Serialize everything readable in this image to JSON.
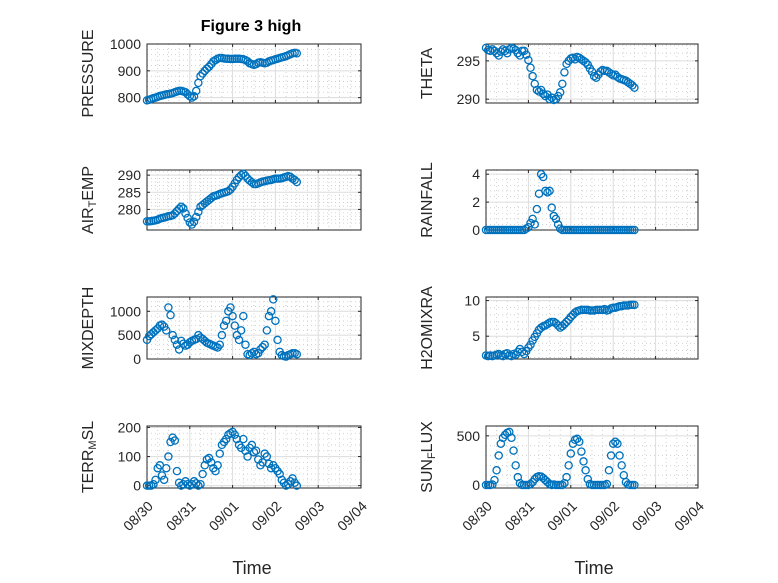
{
  "figure": {
    "title": "Figure 3 high",
    "xlabel": "Time"
  },
  "colors": {
    "marker": "#0072BD",
    "axis": "#262626"
  },
  "chart_data": [
    {
      "id": "pressure",
      "type": "scatter",
      "title": "Figure 3 high",
      "xlabel": "",
      "ylabel": "PRESSURE",
      "ylim": [
        780,
        1000
      ],
      "yticks": [
        800,
        900,
        1000
      ],
      "xlim": [
        0,
        5
      ],
      "x": [
        0.0,
        0.05,
        0.1,
        0.15,
        0.2,
        0.25,
        0.3,
        0.35,
        0.4,
        0.45,
        0.5,
        0.55,
        0.6,
        0.65,
        0.7,
        0.75,
        0.8,
        0.85,
        0.9,
        0.95,
        1.0,
        1.05,
        1.1,
        1.15,
        1.2,
        1.25,
        1.3,
        1.35,
        1.4,
        1.45,
        1.5,
        1.55,
        1.6,
        1.65,
        1.7,
        1.75,
        1.8,
        1.85,
        1.9,
        1.95,
        2.0,
        2.05,
        2.1,
        2.15,
        2.2,
        2.25,
        2.3,
        2.35,
        2.4,
        2.45,
        2.5,
        2.55,
        2.6,
        2.65,
        2.7,
        2.75,
        2.8,
        2.85,
        2.9,
        2.95,
        3.0,
        3.05,
        3.1,
        3.15,
        3.2,
        3.25,
        3.3,
        3.35,
        3.4,
        3.45,
        3.5
      ],
      "y": [
        790,
        792,
        795,
        798,
        800,
        803,
        806,
        808,
        810,
        812,
        813,
        815,
        817,
        820,
        823,
        825,
        825,
        823,
        820,
        812,
        805,
        800,
        805,
        825,
        855,
        880,
        890,
        900,
        908,
        915,
        925,
        935,
        940,
        945,
        948,
        948,
        946,
        945,
        945,
        944,
        944,
        945,
        945,
        945,
        944,
        943,
        940,
        935,
        928,
        925,
        922,
        925,
        930,
        932,
        930,
        928,
        930,
        935,
        938,
        940,
        943,
        945,
        948,
        950,
        952,
        955,
        958,
        962,
        965,
        967,
        965
      ]
    },
    {
      "id": "theta",
      "type": "scatter",
      "xlabel": "",
      "ylabel": "THETA",
      "ylim": [
        289.5,
        297.2
      ],
      "yticks": [
        290,
        295
      ],
      "xlim": [
        0,
        5
      ],
      "x": [
        0.0,
        0.05,
        0.1,
        0.15,
        0.2,
        0.25,
        0.3,
        0.35,
        0.4,
        0.45,
        0.5,
        0.55,
        0.6,
        0.65,
        0.7,
        0.75,
        0.8,
        0.85,
        0.9,
        0.95,
        1.0,
        1.05,
        1.1,
        1.15,
        1.2,
        1.25,
        1.3,
        1.35,
        1.4,
        1.45,
        1.5,
        1.55,
        1.6,
        1.65,
        1.7,
        1.75,
        1.8,
        1.85,
        1.9,
        1.95,
        2.0,
        2.05,
        2.1,
        2.15,
        2.2,
        2.25,
        2.3,
        2.35,
        2.4,
        2.45,
        2.5,
        2.55,
        2.6,
        2.65,
        2.7,
        2.75,
        2.8,
        2.85,
        2.9,
        2.95,
        3.0,
        3.05,
        3.1,
        3.15,
        3.2,
        3.25,
        3.3,
        3.35,
        3.4,
        3.45,
        3.5
      ],
      "y": [
        296.7,
        296.4,
        296.3,
        296.5,
        296.3,
        296.0,
        295.7,
        296.2,
        296.5,
        296.3,
        296.0,
        296.5,
        296.7,
        296.6,
        296.4,
        296.0,
        295.7,
        296.3,
        296.3,
        295.8,
        295.1,
        294.1,
        293.0,
        292.0,
        291.2,
        291.0,
        291.2,
        290.7,
        290.4,
        290.6,
        290.0,
        290.2,
        289.9,
        290.0,
        290.4,
        290.9,
        292.0,
        293.5,
        294.6,
        295.0,
        295.3,
        295.4,
        295.2,
        295.5,
        295.4,
        295.2,
        295.0,
        294.8,
        294.5,
        294.0,
        293.6,
        293.0,
        292.8,
        293.2,
        293.6,
        293.8,
        293.7,
        293.7,
        293.5,
        293.3,
        293.1,
        293.2,
        292.9,
        292.7,
        292.6,
        292.5,
        292.4,
        292.2,
        292.0,
        291.8,
        291.5
      ]
    },
    {
      "id": "air_temp",
      "type": "scatter",
      "xlabel": "",
      "ylabel": "AIR",
      "ylabel_sub": "T",
      "ylabel_post": "EMP",
      "ylim": [
        274,
        291.5
      ],
      "yticks": [
        280,
        285,
        290
      ],
      "xlim": [
        0,
        5
      ],
      "x": [
        0.0,
        0.05,
        0.1,
        0.15,
        0.2,
        0.25,
        0.3,
        0.35,
        0.4,
        0.45,
        0.5,
        0.55,
        0.6,
        0.65,
        0.7,
        0.75,
        0.8,
        0.85,
        0.9,
        0.95,
        1.0,
        1.05,
        1.1,
        1.15,
        1.2,
        1.25,
        1.3,
        1.35,
        1.4,
        1.45,
        1.5,
        1.55,
        1.6,
        1.65,
        1.7,
        1.75,
        1.8,
        1.85,
        1.9,
        1.95,
        2.0,
        2.05,
        2.1,
        2.15,
        2.2,
        2.25,
        2.3,
        2.35,
        2.4,
        2.45,
        2.5,
        2.55,
        2.6,
        2.65,
        2.7,
        2.75,
        2.8,
        2.85,
        2.9,
        2.95,
        3.0,
        3.05,
        3.1,
        3.15,
        3.2,
        3.25,
        3.3,
        3.35,
        3.4,
        3.45,
        3.5
      ],
      "y": [
        276.5,
        276.5,
        276.6,
        276.7,
        276.8,
        277.0,
        277.3,
        277.5,
        277.6,
        277.8,
        278.0,
        278.1,
        278.3,
        278.8,
        279.5,
        280.2,
        280.8,
        280.3,
        278.8,
        277.5,
        276.2,
        275.6,
        276.4,
        277.8,
        279.3,
        280.8,
        281.3,
        281.8,
        282.3,
        282.8,
        283.3,
        283.8,
        284.0,
        284.2,
        284.5,
        284.7,
        284.9,
        285.1,
        285.3,
        285.8,
        286.6,
        287.6,
        288.6,
        289.4,
        290.0,
        290.4,
        289.8,
        289.0,
        288.4,
        287.9,
        287.4,
        287.4,
        287.6,
        287.9,
        288.1,
        288.2,
        288.4,
        288.5,
        288.6,
        288.8,
        289.0,
        289.0,
        289.0,
        289.1,
        289.3,
        289.5,
        289.7,
        289.5,
        289.0,
        288.6,
        288.0
      ]
    },
    {
      "id": "rainfall",
      "type": "scatter",
      "xlabel": "",
      "ylabel": "RAINFALL",
      "ylim": [
        0,
        4.3
      ],
      "yticks": [
        0,
        2,
        4
      ],
      "xlim": [
        0,
        5
      ],
      "x": [
        0.0,
        0.05,
        0.1,
        0.15,
        0.2,
        0.25,
        0.3,
        0.35,
        0.4,
        0.45,
        0.5,
        0.55,
        0.6,
        0.65,
        0.7,
        0.75,
        0.8,
        0.85,
        0.9,
        0.95,
        1.0,
        1.05,
        1.1,
        1.15,
        1.2,
        1.25,
        1.3,
        1.35,
        1.4,
        1.45,
        1.5,
        1.55,
        1.6,
        1.65,
        1.7,
        1.75,
        1.8,
        1.85,
        1.9,
        1.95,
        2.0,
        2.05,
        2.1,
        2.15,
        2.2,
        2.25,
        2.3,
        2.35,
        2.4,
        2.45,
        2.5,
        2.55,
        2.6,
        2.65,
        2.7,
        2.75,
        2.8,
        2.85,
        2.9,
        2.95,
        3.0,
        3.05,
        3.1,
        3.15,
        3.2,
        3.25,
        3.3,
        3.35,
        3.4,
        3.45,
        3.5
      ],
      "y": [
        0,
        0,
        0,
        0,
        0,
        0,
        0,
        0,
        0,
        0,
        0,
        0,
        0,
        0,
        0,
        0,
        0,
        0,
        0,
        0.1,
        0.2,
        0.5,
        0.8,
        0.4,
        1.5,
        2.6,
        4.0,
        3.8,
        2.8,
        2.7,
        2.8,
        1.6,
        1.0,
        0.8,
        0.4,
        0.1,
        0,
        0,
        0,
        0,
        0,
        0,
        0,
        0,
        0,
        0,
        0,
        0,
        0,
        0,
        0,
        0,
        0,
        0,
        0,
        0,
        0,
        0,
        0,
        0,
        0,
        0,
        0,
        0,
        0,
        0,
        0,
        0,
        0,
        0,
        0
      ]
    },
    {
      "id": "mixdepth",
      "type": "scatter",
      "xlabel": "",
      "ylabel": "MIXDEPTH",
      "ylim": [
        0,
        1300
      ],
      "yticks": [
        0,
        500,
        1000
      ],
      "xlim": [
        0,
        5
      ],
      "x": [
        0.0,
        0.05,
        0.1,
        0.15,
        0.2,
        0.25,
        0.3,
        0.35,
        0.4,
        0.45,
        0.5,
        0.55,
        0.6,
        0.65,
        0.7,
        0.75,
        0.8,
        0.85,
        0.9,
        0.95,
        1.0,
        1.05,
        1.1,
        1.15,
        1.2,
        1.25,
        1.3,
        1.35,
        1.4,
        1.45,
        1.5,
        1.55,
        1.6,
        1.65,
        1.7,
        1.75,
        1.8,
        1.85,
        1.9,
        1.95,
        2.0,
        2.05,
        2.1,
        2.15,
        2.2,
        2.25,
        2.3,
        2.35,
        2.4,
        2.45,
        2.5,
        2.55,
        2.6,
        2.65,
        2.7,
        2.75,
        2.8,
        2.85,
        2.9,
        2.95,
        3.0,
        3.05,
        3.1,
        3.15,
        3.2,
        3.25,
        3.3,
        3.35,
        3.4,
        3.45,
        3.5
      ],
      "y": [
        400,
        480,
        520,
        560,
        600,
        640,
        700,
        720,
        680,
        600,
        1080,
        920,
        500,
        400,
        300,
        200,
        380,
        320,
        280,
        300,
        350,
        380,
        400,
        420,
        500,
        450,
        420,
        380,
        340,
        320,
        300,
        280,
        260,
        240,
        300,
        500,
        700,
        800,
        1000,
        1080,
        900,
        700,
        500,
        400,
        600,
        900,
        300,
        100,
        80,
        120,
        150,
        100,
        120,
        200,
        250,
        300,
        600,
        900,
        1000,
        1250,
        800,
        400,
        150,
        80,
        60,
        50,
        80,
        100,
        120,
        120,
        100
      ]
    },
    {
      "id": "h2omixra",
      "type": "scatter",
      "xlabel": "",
      "ylabel": "H2OMIXRA",
      "ylim": [
        1.8,
        10.5
      ],
      "yticks": [
        5,
        10
      ],
      "xlim": [
        0,
        5
      ],
      "x": [
        0.0,
        0.05,
        0.1,
        0.15,
        0.2,
        0.25,
        0.3,
        0.35,
        0.4,
        0.45,
        0.5,
        0.55,
        0.6,
        0.65,
        0.7,
        0.75,
        0.8,
        0.85,
        0.9,
        0.95,
        1.0,
        1.05,
        1.1,
        1.15,
        1.2,
        1.25,
        1.3,
        1.35,
        1.4,
        1.45,
        1.5,
        1.55,
        1.6,
        1.65,
        1.7,
        1.75,
        1.8,
        1.85,
        1.9,
        1.95,
        2.0,
        2.05,
        2.1,
        2.15,
        2.2,
        2.25,
        2.3,
        2.35,
        2.4,
        2.45,
        2.5,
        2.55,
        2.6,
        2.65,
        2.7,
        2.75,
        2.8,
        2.85,
        2.9,
        2.95,
        3.0,
        3.05,
        3.1,
        3.15,
        3.2,
        3.25,
        3.3,
        3.35,
        3.4,
        3.45,
        3.5
      ],
      "y": [
        2.3,
        2.2,
        2.3,
        2.2,
        2.3,
        2.4,
        2.5,
        2.3,
        2.2,
        2.5,
        2.6,
        2.3,
        2.2,
        2.5,
        2.4,
        2.8,
        3.2,
        2.8,
        2.5,
        2.9,
        3.4,
        3.8,
        4.4,
        4.9,
        5.4,
        5.9,
        6.2,
        6.4,
        6.5,
        6.7,
        6.9,
        7.0,
        7.0,
        6.8,
        6.5,
        6.2,
        6.4,
        6.7,
        7.0,
        7.3,
        7.7,
        8.0,
        8.3,
        8.5,
        8.6,
        8.7,
        8.7,
        8.7,
        8.7,
        8.6,
        8.6,
        8.6,
        8.7,
        8.7,
        8.7,
        8.7,
        8.8,
        8.6,
        8.7,
        8.9,
        9.0,
        9.0,
        9.1,
        9.2,
        9.2,
        9.3,
        9.3,
        9.3,
        9.4,
        9.4,
        9.4
      ]
    },
    {
      "id": "terr_msl",
      "type": "scatter",
      "xlabel": "Time",
      "ylabel": "TERR",
      "ylabel_sub": "M",
      "ylabel_post": "SL",
      "ylim": [
        -8,
        205
      ],
      "yticks": [
        0,
        100,
        200
      ],
      "xlim": [
        0,
        5
      ],
      "xticklabels": [
        "08/30",
        "08/31",
        "09/01",
        "09/02",
        "09/03",
        "09/04"
      ],
      "x": [
        0.0,
        0.05,
        0.1,
        0.15,
        0.2,
        0.25,
        0.3,
        0.35,
        0.4,
        0.45,
        0.5,
        0.55,
        0.6,
        0.65,
        0.7,
        0.75,
        0.8,
        0.85,
        0.9,
        0.95,
        1.0,
        1.05,
        1.1,
        1.15,
        1.2,
        1.25,
        1.3,
        1.35,
        1.4,
        1.45,
        1.5,
        1.55,
        1.6,
        1.65,
        1.7,
        1.75,
        1.8,
        1.85,
        1.9,
        1.95,
        2.0,
        2.05,
        2.1,
        2.15,
        2.2,
        2.25,
        2.3,
        2.35,
        2.4,
        2.45,
        2.5,
        2.55,
        2.6,
        2.65,
        2.7,
        2.75,
        2.8,
        2.85,
        2.9,
        2.95,
        3.0,
        3.05,
        3.1,
        3.15,
        3.2,
        3.25,
        3.3,
        3.35,
        3.4,
        3.45,
        3.5
      ],
      "y": [
        0,
        0,
        0,
        5,
        20,
        60,
        70,
        35,
        20,
        60,
        100,
        150,
        165,
        155,
        50,
        10,
        0,
        5,
        15,
        5,
        0,
        5,
        15,
        8,
        0,
        5,
        40,
        70,
        90,
        95,
        80,
        60,
        50,
        70,
        110,
        140,
        150,
        160,
        175,
        180,
        185,
        175,
        160,
        140,
        130,
        160,
        120,
        100,
        130,
        140,
        115,
        120,
        90,
        70,
        80,
        110,
        100,
        75,
        60,
        70,
        60,
        50,
        40,
        20,
        10,
        0,
        5,
        15,
        25,
        10,
        0
      ]
    },
    {
      "id": "sun_flux",
      "type": "scatter",
      "xlabel": "Time",
      "ylabel": "SUN",
      "ylabel_sub": "F",
      "ylabel_post": "LUX",
      "ylim": [
        -30,
        600
      ],
      "yticks": [
        0,
        500
      ],
      "xlim": [
        0,
        5
      ],
      "xticklabels": [
        "08/30",
        "08/31",
        "09/01",
        "09/02",
        "09/03",
        "09/04"
      ],
      "x": [
        0.0,
        0.05,
        0.1,
        0.15,
        0.2,
        0.25,
        0.3,
        0.35,
        0.4,
        0.45,
        0.5,
        0.55,
        0.6,
        0.65,
        0.7,
        0.75,
        0.8,
        0.85,
        0.9,
        0.95,
        1.0,
        1.05,
        1.1,
        1.15,
        1.2,
        1.25,
        1.3,
        1.35,
        1.4,
        1.45,
        1.5,
        1.55,
        1.6,
        1.65,
        1.7,
        1.75,
        1.8,
        1.85,
        1.9,
        1.95,
        2.0,
        2.05,
        2.1,
        2.15,
        2.2,
        2.25,
        2.3,
        2.35,
        2.4,
        2.45,
        2.5,
        2.55,
        2.6,
        2.65,
        2.7,
        2.75,
        2.8,
        2.85,
        2.9,
        2.95,
        3.0,
        3.05,
        3.1,
        3.15,
        3.2,
        3.25,
        3.3,
        3.35,
        3.4,
        3.45,
        3.5
      ],
      "y": [
        0,
        0,
        0,
        5,
        50,
        150,
        300,
        420,
        480,
        510,
        530,
        540,
        480,
        350,
        200,
        80,
        20,
        0,
        0,
        0,
        0,
        10,
        30,
        60,
        80,
        90,
        85,
        70,
        50,
        30,
        10,
        0,
        5,
        0,
        0,
        0,
        0,
        20,
        80,
        200,
        320,
        420,
        460,
        470,
        440,
        340,
        240,
        150,
        60,
        10,
        0,
        0,
        0,
        0,
        0,
        0,
        0,
        10,
        150,
        300,
        420,
        440,
        420,
        300,
        200,
        100,
        30,
        5,
        0,
        0,
        0
      ]
    }
  ]
}
